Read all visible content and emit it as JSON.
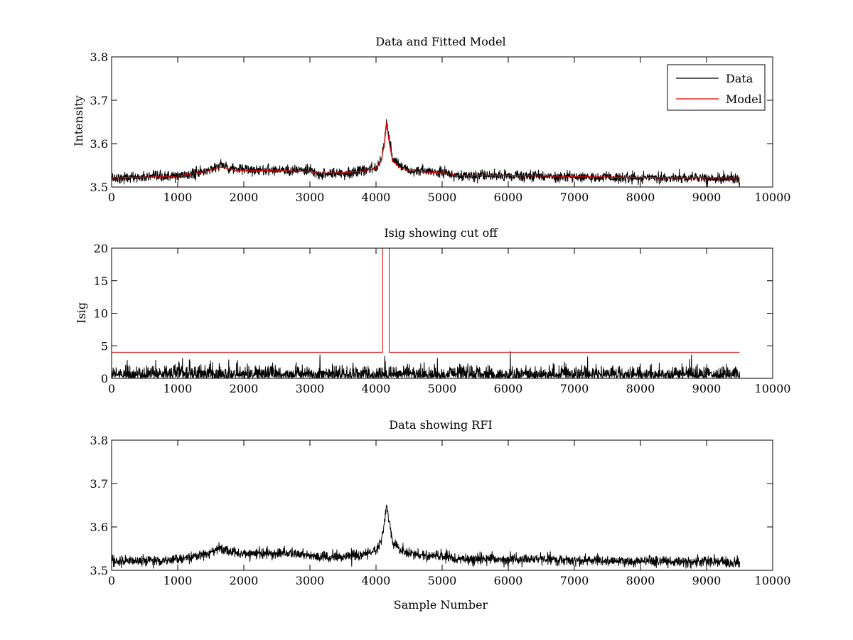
{
  "chart_data": [
    {
      "type": "line",
      "title": "Data and Fitted Model",
      "xlabel": "",
      "ylabel": "Intensity",
      "xlim": [
        0,
        10000
      ],
      "ylim": [
        3.5,
        3.8
      ],
      "xticks": [
        "0",
        "1000",
        "2000",
        "3000",
        "4000",
        "5000",
        "6000",
        "7000",
        "8000",
        "9000",
        "10000"
      ],
      "yticks": [
        "3.5",
        "3.6",
        "3.7",
        "3.8"
      ],
      "legend": {
        "position": "top-right",
        "entries": [
          "Data",
          "Model"
        ]
      },
      "series": [
        {
          "name": "Data",
          "color": "#000000",
          "kind": "noisy",
          "noise_sd": 0.006,
          "x": [
            0,
            600,
            1000,
            1400,
            1650,
            1900,
            2500,
            3000,
            3100,
            3500,
            3800,
            4000,
            4080,
            4130,
            4160,
            4190,
            4250,
            4350,
            4500,
            4800,
            5100,
            5200,
            6000,
            7000,
            8000,
            9000,
            9500
          ],
          "y": [
            3.521,
            3.523,
            3.525,
            3.535,
            3.551,
            3.54,
            3.54,
            3.537,
            3.53,
            3.532,
            3.537,
            3.545,
            3.565,
            3.615,
            3.652,
            3.62,
            3.565,
            3.55,
            3.538,
            3.535,
            3.533,
            3.525,
            3.526,
            3.523,
            3.521,
            3.52,
            3.52
          ]
        },
        {
          "name": "Model",
          "color": "#e00000",
          "kind": "smooth",
          "x": [
            0,
            600,
            1000,
            1400,
            1650,
            1900,
            2500,
            3000,
            3100,
            3500,
            3800,
            4000,
            4080,
            4130,
            4160,
            4190,
            4250,
            4350,
            4500,
            4800,
            5100,
            5200,
            6000,
            7000,
            8000,
            9000,
            9500
          ],
          "y": [
            3.521,
            3.523,
            3.525,
            3.535,
            3.546,
            3.538,
            3.538,
            3.536,
            3.532,
            3.533,
            3.537,
            3.543,
            3.56,
            3.605,
            3.648,
            3.612,
            3.56,
            3.546,
            3.537,
            3.534,
            3.532,
            3.527,
            3.527,
            3.524,
            3.522,
            3.521,
            3.521
          ]
        }
      ]
    },
    {
      "type": "line",
      "title": "Isig showing cut off",
      "xlabel": "",
      "ylabel": "Isig",
      "xlim": [
        0,
        10000
      ],
      "ylim": [
        0,
        20
      ],
      "xticks": [
        "0",
        "1000",
        "2000",
        "3000",
        "4000",
        "5000",
        "6000",
        "7000",
        "8000",
        "9000",
        "10000"
      ],
      "yticks": [
        "0",
        "5",
        "10",
        "15",
        "20"
      ],
      "series": [
        {
          "name": "Isig",
          "color": "#000000",
          "kind": "abs-noise",
          "noise_sd": 0.9,
          "x": [
            0,
            9500
          ],
          "y": [
            0,
            0
          ],
          "spikes": [
            [
              3150,
              3.6
            ],
            [
              4130,
              3.4
            ],
            [
              6030,
              4.1
            ],
            [
              7200,
              3.3
            ],
            [
              8770,
              3.6
            ]
          ]
        },
        {
          "name": "Cut off",
          "color": "#e00000",
          "kind": "step",
          "x": [
            0,
            4100,
            4100,
            4200,
            4200,
            9500
          ],
          "y": [
            4,
            4,
            20,
            20,
            4,
            4
          ]
        }
      ]
    },
    {
      "type": "line",
      "title": "Data showing RFI",
      "xlabel": "Sample Number",
      "ylabel": "",
      "xlim": [
        0,
        10000
      ],
      "ylim": [
        3.5,
        3.8
      ],
      "xticks": [
        "0",
        "1000",
        "2000",
        "3000",
        "4000",
        "5000",
        "6000",
        "7000",
        "8000",
        "9000",
        "10000"
      ],
      "yticks": [
        "3.5",
        "3.6",
        "3.7",
        "3.8"
      ],
      "series": [
        {
          "name": "Data",
          "color": "#000000",
          "kind": "noisy",
          "noise_sd": 0.006,
          "x": [
            0,
            600,
            1000,
            1400,
            1650,
            1900,
            2500,
            3000,
            3100,
            3500,
            3800,
            4000,
            4080,
            4130,
            4160,
            4190,
            4250,
            4350,
            4500,
            4800,
            5100,
            5200,
            6000,
            7000,
            8000,
            9000,
            9500
          ],
          "y": [
            3.521,
            3.523,
            3.525,
            3.535,
            3.551,
            3.54,
            3.54,
            3.537,
            3.53,
            3.532,
            3.537,
            3.545,
            3.565,
            3.615,
            3.652,
            3.62,
            3.565,
            3.55,
            3.538,
            3.535,
            3.533,
            3.525,
            3.526,
            3.523,
            3.521,
            3.52,
            3.52
          ]
        }
      ]
    }
  ]
}
